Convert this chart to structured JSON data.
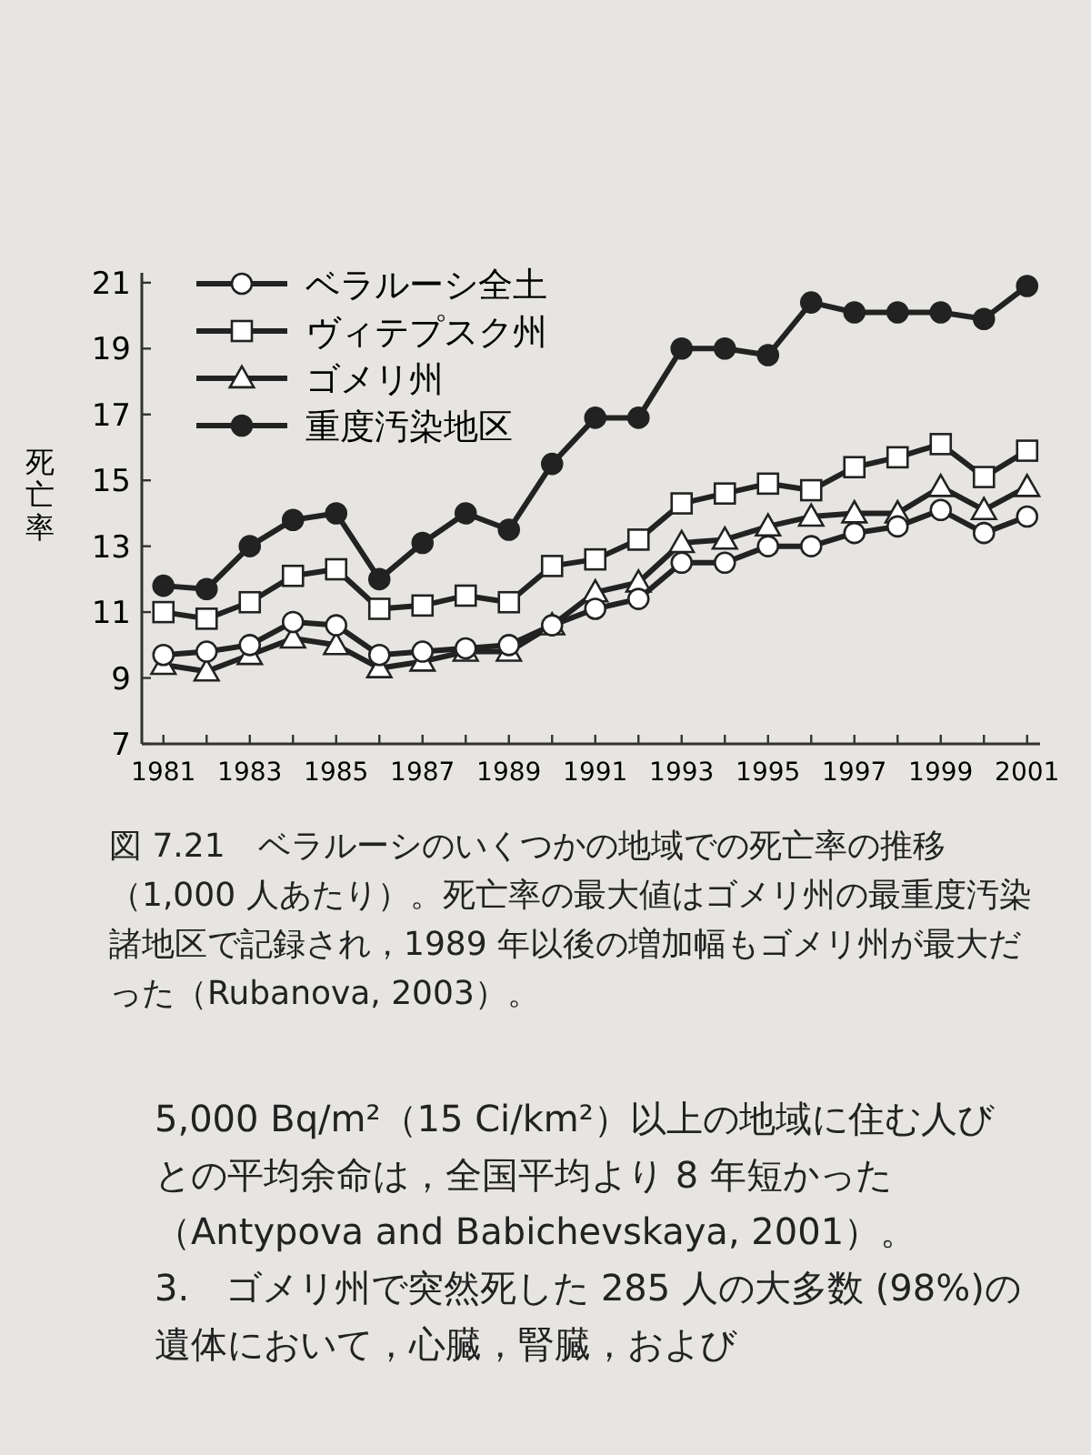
{
  "chart_data": {
    "type": "line",
    "title": "図 7.21　ベラルーシのいくつかの地域での死亡率の推移（1,000 人あたり）。死亡率の最大値はゴメリ州の最重度汚染諸地区で記録され，1989 年以後の増加幅もゴメリ州が最大だった（Rubanova, 2003）。",
    "ylabel": "死亡率",
    "x": [
      1981,
      1982,
      1983,
      1984,
      1985,
      1986,
      1987,
      1988,
      1989,
      1990,
      1991,
      1992,
      1993,
      1994,
      1995,
      1996,
      1997,
      1998,
      1999,
      2000,
      2001
    ],
    "series": [
      {
        "name": "ベラルーシ全土",
        "color": "#222222",
        "marker": "circle",
        "colors": [
          "#ffffff",
          "#ffffff",
          "#ffffff",
          "#ffffff",
          "#ffffff",
          "#ffffff",
          "#ffffff",
          "#ffffff",
          "#ffffff",
          "#ffffff",
          "#ffffff",
          "#ffffff",
          "#ffffff",
          "#ffffff",
          "#ffffff",
          "#ffffff",
          "#ffffff",
          "#ffffff",
          "#ffffff",
          "#ffffff",
          "#ffffff"
        ],
        "values": [
          9.7,
          9.8,
          10.0,
          10.7,
          10.6,
          9.7,
          9.8,
          9.9,
          10.0,
          10.6,
          11.1,
          11.4,
          12.5,
          12.5,
          13.0,
          13.0,
          13.4,
          13.6,
          14.1,
          13.4,
          13.9
        ]
      },
      {
        "name": "ヴィテプスク州",
        "color": "#222222",
        "marker": "square",
        "colors": [
          "#ffffff",
          "#ffffff",
          "#ffffff",
          "#ffffff",
          "#ffffff",
          "#ffffff",
          "#ffffff",
          "#ffffff",
          "#ffffff",
          "#ffffff",
          "#ffffff",
          "#ffffff",
          "#ffffff",
          "#ffffff",
          "#ffffff",
          "#ffffff",
          "#ffffff",
          "#ffffff",
          "#ffffff",
          "#ffffff",
          "#ffffff"
        ],
        "values": [
          11.0,
          10.8,
          11.3,
          12.1,
          12.3,
          11.1,
          11.2,
          11.5,
          11.3,
          12.4,
          12.6,
          13.2,
          14.3,
          14.6,
          14.9,
          14.7,
          15.4,
          15.7,
          16.1,
          15.1,
          15.9
        ]
      },
      {
        "name": "ゴメリ州",
        "color": "#222222",
        "marker": "triangle",
        "colors": [
          "#ffffff",
          "#ffffff",
          "#ffffff",
          "#ffffff",
          "#ffffff",
          "#ffffff",
          "#ffffff",
          "#ffffff",
          "#ffffff",
          "#ffffff",
          "#ffffff",
          "#ffffff",
          "#ffffff",
          "#ffffff",
          "#ffffff",
          "#ffffff",
          "#ffffff",
          "#ffffff",
          "#ffffff",
          "#ffffff",
          "#ffffff"
        ],
        "values": [
          9.4,
          9.2,
          9.7,
          10.2,
          10.0,
          9.3,
          9.5,
          9.8,
          9.8,
          10.6,
          11.6,
          11.9,
          13.1,
          13.2,
          13.6,
          13.9,
          14.0,
          14.0,
          14.8,
          14.1,
          14.8
        ]
      },
      {
        "name": "重度汚染地区",
        "color": "#222222",
        "marker": "circle",
        "values": [
          11.8,
          11.7,
          13.0,
          13.8,
          14.0,
          12.0,
          13.1,
          14.0,
          13.5,
          15.5,
          16.9,
          16.9,
          19.0,
          19.0,
          18.8,
          20.4,
          20.1,
          20.1,
          20.1,
          19.9,
          20.9
        ]
      }
    ],
    "xlim": [
      1980.5,
      2001.3
    ],
    "xticks": [
      1981,
      {
        "value": 1982,
        "label": null
      },
      1983,
      {
        "value": 1984,
        "label": null
      },
      1985,
      {
        "value": 1986,
        "label": null
      },
      1987,
      {
        "value": 1988,
        "label": null
      },
      1989,
      {
        "value": 1990,
        "label": null
      },
      1991,
      {
        "value": 1992,
        "label": null
      },
      1993,
      {
        "value": 1994,
        "label": null
      },
      1995,
      {
        "value": 1996,
        "label": null
      },
      1997,
      {
        "value": 1998,
        "label": null
      },
      1999,
      {
        "value": 2000,
        "label": null
      },
      2001
    ],
    "ylim": [
      7,
      21.3
    ],
    "yticks": [
      7,
      9,
      11,
      13,
      15,
      17,
      19,
      21
    ],
    "legend": "top left",
    "annotations": [
      "5,000 Bq/m²（15 Ci/km²）以上の地域に住む人びとの平均余命は，全国平均より 8 年短かった（Antypova and Babichevskaya, 2001）。",
      "3.　ゴメリ州で突然死した 285 人の大多数 (98%)の遺体において，心臓，腎臓，および"
    ]
  }
}
